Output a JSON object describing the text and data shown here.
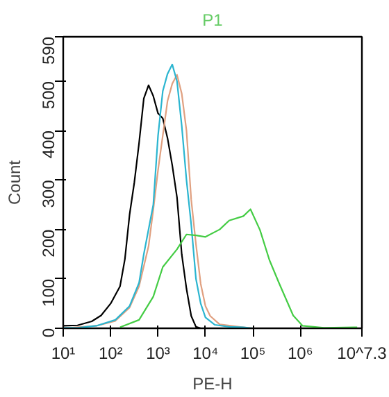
{
  "chart_data": {
    "type": "line",
    "xlabel": "PE-H",
    "ylabel": "Count",
    "log": "x",
    "annotations": [
      "P1"
    ],
    "xlim": [
      10,
      19952623
    ],
    "ylim": [
      0,
      590
    ],
    "xticks": [
      {
        "value": 10,
        "label": "10¹"
      },
      {
        "value": 100,
        "label": "10²"
      },
      {
        "value": 1000,
        "label": "10³"
      },
      {
        "value": 10000,
        "label": "10⁴"
      },
      {
        "value": 100000,
        "label": "10⁵"
      },
      {
        "value": 1000000,
        "label": "10⁶"
      },
      {
        "value": 19952623,
        "label": "10^7.3"
      }
    ],
    "yticks": [
      0,
      100,
      200,
      300,
      400,
      500,
      590
    ],
    "grid": false,
    "marker": "none",
    "line_style": "solid",
    "series": [
      {
        "color": "#000000",
        "x": [
          10,
          20,
          40,
          63,
          100,
          158,
          200,
          251,
          316,
          398,
          501,
          631,
          794,
          1000,
          1259,
          1585,
          1995,
          2512,
          3162,
          3981,
          5012,
          6310,
          7943
        ],
        "values": [
          5,
          6,
          14,
          26,
          50,
          85,
          140,
          230,
          295,
          375,
          465,
          492,
          470,
          435,
          425,
          385,
          330,
          265,
          150,
          80,
          25,
          3,
          0
        ]
      },
      {
        "color": "#e0a080",
        "x": [
          10,
          50,
          126,
          251,
          398,
          631,
          794,
          1000,
          1259,
          1585,
          1995,
          2512,
          3162,
          3981,
          5012,
          6310,
          7943,
          10000,
          12589,
          19953,
          63096,
          100000
        ],
        "values": [
          0,
          5,
          15,
          42,
          85,
          166,
          240,
          320,
          390,
          460,
          495,
          513,
          475,
          400,
          260,
          170,
          90,
          45,
          25,
          8,
          2,
          0
        ]
      },
      {
        "color": "#2bb5d0",
        "x": [
          10,
          20,
          50,
          126,
          251,
          398,
          501,
          794,
          1000,
          1259,
          1585,
          1995,
          2512,
          3162,
          3981,
          5012,
          6310,
          7943,
          10000,
          15849,
          31623,
          63096,
          100000
        ],
        "values": [
          1,
          1,
          5,
          17,
          45,
          92,
          150,
          250,
          390,
          480,
          515,
          534,
          500,
          410,
          300,
          210,
          100,
          50,
          22,
          7,
          3,
          2,
          0
        ]
      },
      {
        "color": "#44cc44",
        "x": [
          158,
          398,
          794,
          1259,
          2512,
          3981,
          6310,
          10000,
          19953,
          31623,
          63096,
          89125,
          141254,
          223872,
          354813,
          501187,
          707946,
          1122018,
          3162278,
          15848932
        ],
        "values": [
          2,
          17,
          64,
          124,
          160,
          190,
          188,
          185,
          200,
          218,
          227,
          241,
          199,
          138,
          92,
          59,
          26,
          5,
          1,
          2
        ]
      }
    ]
  }
}
